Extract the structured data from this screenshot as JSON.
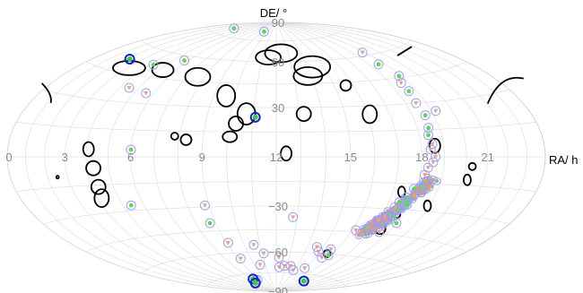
{
  "chart_data": {
    "type": "scatter",
    "projection": "aitoff-hammer (RA reversed, 24h at left)",
    "xlabel": "RA/ h",
    "ylabel": "DE/ °",
    "ra_ticks": [
      {
        "ra": 0,
        "label": "0"
      },
      {
        "ra": 21,
        "label": "21"
      },
      {
        "ra": 18,
        "label": "18"
      },
      {
        "ra": 15,
        "label": "15"
      },
      {
        "ra": 12,
        "label": "12"
      },
      {
        "ra": 9,
        "label": "9"
      },
      {
        "ra": 6,
        "label": "6"
      },
      {
        "ra": 3,
        "label": "3"
      }
    ],
    "dec_ticks": [
      {
        "dec": 90,
        "label": "90"
      },
      {
        "dec": 60,
        "label": "60"
      },
      {
        "dec": 30,
        "label": "30"
      },
      {
        "dec": -30,
        "label": "−30"
      },
      {
        "dec": -60,
        "label": "−60"
      },
      {
        "dec": -90,
        "label": "−90"
      }
    ],
    "grid": true,
    "ellipses": [
      {
        "ra": 12.4,
        "dec": 66,
        "w": 18,
        "h": 10
      },
      {
        "ra": 11.4,
        "dec": 63,
        "w": 14,
        "h": 8
      },
      {
        "ra": 14.3,
        "dec": 56,
        "w": 20,
        "h": 12
      },
      {
        "ra": 13.8,
        "dec": 50,
        "w": 16,
        "h": 10
      },
      {
        "ra": 15.6,
        "dec": 43,
        "w": 6,
        "h": 6
      },
      {
        "ra": 7.6,
        "dec": 48,
        "w": 14,
        "h": 10
      },
      {
        "ra": 5.2,
        "dec": 50,
        "w": 12,
        "h": 8
      },
      {
        "ra": 3.1,
        "dec": 48,
        "w": 18,
        "h": 8
      },
      {
        "ra": 9.6,
        "dec": 37,
        "w": 10,
        "h": 12
      },
      {
        "ra": 10.7,
        "dec": 26,
        "w": 10,
        "h": 12
      },
      {
        "ra": 10.3,
        "dec": 20,
        "w": 8,
        "h": 8
      },
      {
        "ra": 16.1,
        "dec": 25,
        "w": 8,
        "h": 10
      },
      {
        "ra": 13.2,
        "dec": 26,
        "w": 8,
        "h": 8
      },
      {
        "ra": 10.1,
        "dec": 12,
        "w": 8,
        "h": 6
      },
      {
        "ra": 8.3,
        "dec": 10,
        "w": 6,
        "h": 6
      },
      {
        "ra": 7.8,
        "dec": 12,
        "w": 4,
        "h": 4
      },
      {
        "ra": 4.1,
        "dec": 4,
        "w": 6,
        "h": 8
      },
      {
        "ra": 4.3,
        "dec": -6,
        "w": 8,
        "h": 8
      },
      {
        "ra": 4.3,
        "dec": -16,
        "w": 8,
        "h": 8
      },
      {
        "ra": 4.2,
        "dec": -22,
        "w": 8,
        "h": 10
      },
      {
        "ra": 12.4,
        "dec": 2,
        "w": 6,
        "h": 8
      },
      {
        "ra": 18.6,
        "dec": 6,
        "w": 6,
        "h": 8
      },
      {
        "ra": 20.3,
        "dec": -5,
        "w": 4,
        "h": 4
      },
      {
        "ra": 20.2,
        "dec": -12,
        "w": 4,
        "h": 6
      },
      {
        "ra": 17.4,
        "dec": -20,
        "w": 4,
        "h": 6
      },
      {
        "ra": 18.9,
        "dec": -27,
        "w": 4,
        "h": 6
      },
      {
        "ra": 17.7,
        "dec": -33,
        "w": 4,
        "h": 4
      },
      {
        "ra": 17.4,
        "dec": -42,
        "w": 6,
        "h": 6
      },
      {
        "ra": 15.6,
        "dec": -60,
        "w": 4,
        "h": 4
      },
      {
        "ra": 2.5,
        "dec": -10,
        "w": 1.4,
        "h": 1.6
      }
    ],
    "edge_arcs": [
      {
        "ra": 23.6,
        "dec": 30
      },
      {
        "ra": 21.9,
        "dec": 58
      },
      {
        "ra": 0.6,
        "dec": 28
      }
    ],
    "sources": [
      {
        "ra": 9.3,
        "dec": 82,
        "kind": "det"
      },
      {
        "ra": 2.8,
        "dec": 80,
        "kind": "det"
      },
      {
        "ra": 5.7,
        "dec": 57,
        "kind": "det"
      },
      {
        "ra": 4.2,
        "dec": 52,
        "kind": "det"
      },
      {
        "ra": 2.2,
        "dec": 52,
        "kind": "bright"
      },
      {
        "ra": 18.8,
        "dec": 62,
        "kind": "ul"
      },
      {
        "ra": 18.6,
        "dec": 54,
        "kind": "det"
      },
      {
        "ra": 18.9,
        "dec": 46,
        "kind": "det"
      },
      {
        "ra": 18.6,
        "dec": 42,
        "kind": "ul"
      },
      {
        "ra": 18.6,
        "dec": 37,
        "kind": "det"
      },
      {
        "ra": 18.5,
        "dec": 30,
        "kind": "ul"
      },
      {
        "ra": 19.2,
        "dec": 25,
        "kind": "ul"
      },
      {
        "ra": 18.6,
        "dec": 23,
        "kind": "det"
      },
      {
        "ra": 18.5,
        "dec": 16,
        "kind": "det"
      },
      {
        "ra": 18.4,
        "dec": 12,
        "kind": "det"
      },
      {
        "ra": 18.5,
        "dec": 7,
        "kind": "ul"
      },
      {
        "ra": 18.4,
        "dec": 4,
        "kind": "ul"
      },
      {
        "ra": 18.6,
        "dec": 0,
        "kind": "ul"
      },
      {
        "ra": 18.5,
        "dec": -3,
        "kind": "ul"
      },
      {
        "ra": 18.3,
        "dec": -6,
        "kind": "ul"
      },
      {
        "ra": 18.2,
        "dec": -10,
        "kind": "ul"
      },
      {
        "ra": 17.9,
        "dec": -18,
        "kind": "det"
      },
      {
        "ra": 17.7,
        "dec": -23,
        "kind": "det"
      },
      {
        "ra": 17.8,
        "dec": -25,
        "kind": "det"
      },
      {
        "ra": 17.9,
        "dec": -27,
        "kind": "det"
      },
      {
        "ra": 17.6,
        "dec": -30,
        "kind": "det"
      },
      {
        "ra": 17.5,
        "dec": -26,
        "kind": "det"
      },
      {
        "ra": 17.4,
        "dec": -29,
        "kind": "ul"
      },
      {
        "ra": 17.2,
        "dec": -35,
        "kind": "ul"
      },
      {
        "ra": 17.0,
        "dec": -37,
        "kind": "ul"
      },
      {
        "ra": 16.8,
        "dec": -42,
        "kind": "ul"
      },
      {
        "ra": 16.2,
        "dec": -44,
        "kind": "ul"
      },
      {
        "ra": 18.0,
        "dec": -38,
        "kind": "det"
      },
      {
        "ra": 17.5,
        "dec": -44,
        "kind": "ul"
      },
      {
        "ra": 15.6,
        "dec": -57,
        "kind": "ul"
      },
      {
        "ra": 15.8,
        "dec": -61,
        "kind": "det"
      },
      {
        "ra": 15.5,
        "dec": -63,
        "kind": "ul"
      },
      {
        "ra": 14.9,
        "dec": -59,
        "kind": "ul"
      },
      {
        "ra": 14.6,
        "dec": -56,
        "kind": "ul"
      },
      {
        "ra": 14.9,
        "dec": -71,
        "kind": "ul"
      },
      {
        "ra": 13.9,
        "dec": -73,
        "kind": "ul"
      },
      {
        "ra": 13.4,
        "dec": -70,
        "kind": "ul"
      },
      {
        "ra": 12.8,
        "dec": -70,
        "kind": "ul"
      },
      {
        "ra": 12.3,
        "dec": -71,
        "kind": "ul"
      },
      {
        "ra": 12.2,
        "dec": -64,
        "kind": "ul"
      },
      {
        "ra": 11.1,
        "dec": -61,
        "kind": "ul"
      },
      {
        "ra": 10.6,
        "dec": -55,
        "kind": "ul"
      },
      {
        "ra": 10.5,
        "dec": -69,
        "kind": "ul"
      },
      {
        "ra": 9.2,
        "dec": -64,
        "kind": "ul"
      },
      {
        "ra": 9.1,
        "dec": -53,
        "kind": "ul"
      },
      {
        "ra": 8.7,
        "dec": -40,
        "kind": "det"
      },
      {
        "ra": 8.8,
        "dec": -29,
        "kind": "ul"
      },
      {
        "ra": 12.8,
        "dec": -37,
        "kind": "ul"
      },
      {
        "ra": 8.6,
        "dec": -80,
        "kind": "ul"
      },
      {
        "ra": 8.2,
        "dec": -80,
        "kind": "det"
      },
      {
        "ra": 8.1,
        "dec": -79,
        "kind": "bright"
      },
      {
        "ra": 7.2,
        "dec": -82,
        "kind": "bright"
      },
      {
        "ra": 17.2,
        "dec": -80,
        "kind": "bright"
      },
      {
        "ra": 11.1,
        "dec": 24,
        "kind": "bright"
      },
      {
        "ra": 6.0,
        "dec": 4,
        "kind": "det"
      },
      {
        "ra": 5.4,
        "dec": -27,
        "kind": "det"
      },
      {
        "ra": 4.5,
        "dec": 38,
        "kind": "ul"
      },
      {
        "ra": 5.6,
        "dec": 36,
        "kind": "ul"
      }
    ],
    "galactic_center_cluster": {
      "ra": 17.7,
      "dec": -30,
      "kind": "dense"
    }
  }
}
